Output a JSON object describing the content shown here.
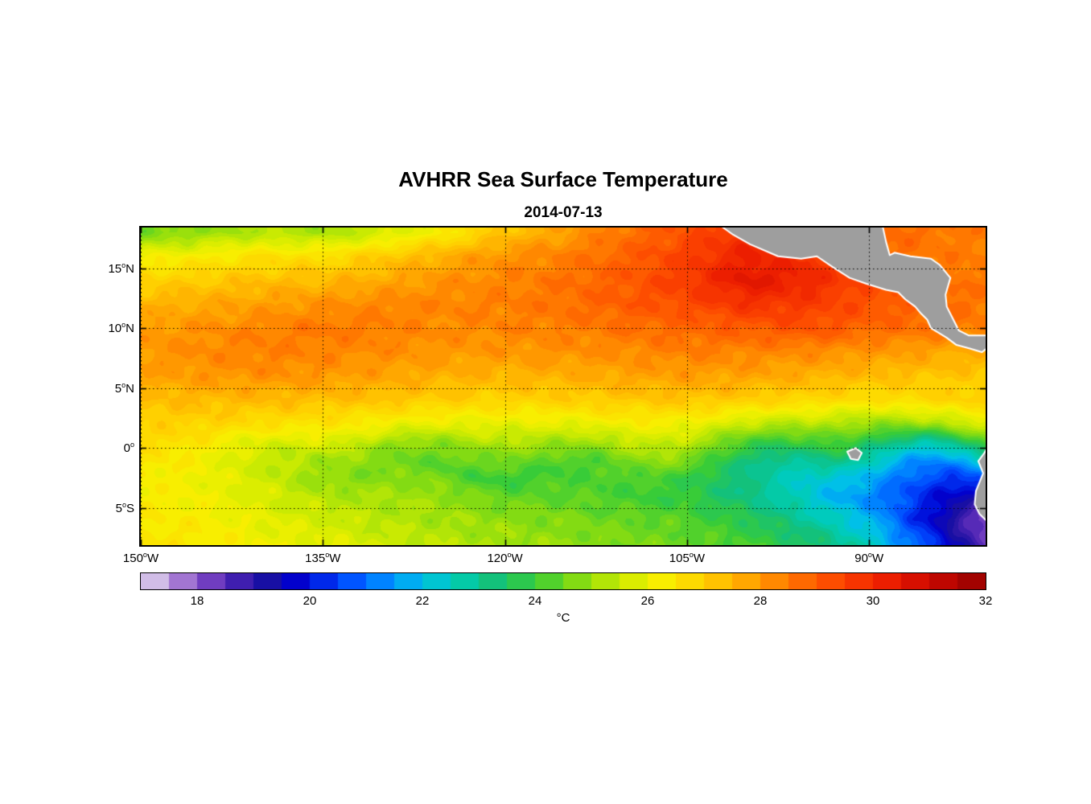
{
  "title": "AVHRR Sea Surface Temperature",
  "subtitle": "2014-07-13",
  "colors": {
    "land": "#9e9e9e",
    "coastline": "#ffffff",
    "axis": "#000000",
    "gridline": "#000000",
    "background": "#ffffff"
  },
  "chart_data": {
    "type": "heatmap",
    "title": "AVHRR Sea Surface Temperature",
    "subtitle": "2014-07-13",
    "units": "°C",
    "deg": "o",
    "lon_range": [
      -150,
      -80.4
    ],
    "lat_range": [
      -8.1,
      18.4
    ],
    "y_ticks": [
      {
        "t": "15",
        "h": "N",
        "lat": 15
      },
      {
        "t": "10",
        "h": "N",
        "lat": 10
      },
      {
        "t": "5",
        "h": "N",
        "lat": 5
      },
      {
        "t": "0",
        "h": "",
        "lat": 0
      },
      {
        "t": "5",
        "h": "S",
        "lat": -5
      }
    ],
    "x_ticks": [
      {
        "t": "150",
        "h": "W",
        "lon": -150
      },
      {
        "t": "135",
        "h": "W",
        "lon": -135
      },
      {
        "t": "120",
        "h": "W",
        "lon": -120
      },
      {
        "t": "105",
        "h": "W",
        "lon": -105
      },
      {
        "t": "90",
        "h": "W",
        "lon": -90
      }
    ],
    "gridline_lats": [
      15,
      10,
      5,
      0,
      -5
    ],
    "gridline_lons": [
      -150,
      -135,
      -120,
      -105,
      -90
    ],
    "grid": {
      "lons": [
        -150,
        -145,
        -140,
        -135,
        -130,
        -125,
        -120,
        -115,
        -110,
        -105,
        -100,
        -95,
        -90,
        -85,
        -80
      ],
      "lats": [
        -8,
        -6,
        -4,
        -2,
        0,
        2,
        4,
        6,
        8,
        10,
        12,
        14,
        16,
        18
      ],
      "sst": [
        [
          26.5,
          26.4,
          26.1,
          25.9,
          25.6,
          25.3,
          25.1,
          24.9,
          24.7,
          24.5,
          24.1,
          23.5,
          22.5,
          20.5,
          18.2
        ],
        [
          26.4,
          26.3,
          25.9,
          25.6,
          25.3,
          25.1,
          24.9,
          24.7,
          24.5,
          24.3,
          23.7,
          22.9,
          21.9,
          19.8,
          17.8
        ],
        [
          26.3,
          26.1,
          25.7,
          25.3,
          25.1,
          24.9,
          24.5,
          24.3,
          24.1,
          23.9,
          23.1,
          22.3,
          21.3,
          20.2,
          19.0
        ],
        [
          26.3,
          26.1,
          25.5,
          24.9,
          24.6,
          24.3,
          23.9,
          24.1,
          24.3,
          23.9,
          23.3,
          22.3,
          21.8,
          21.3,
          20.6
        ],
        [
          26.5,
          26.3,
          25.8,
          25.1,
          25.0,
          24.8,
          24.6,
          25.0,
          25.2,
          24.8,
          24.2,
          23.4,
          23.0,
          22.8,
          23.2
        ],
        [
          26.9,
          26.9,
          26.7,
          26.4,
          26.2,
          26.0,
          25.8,
          26.0,
          26.2,
          26.0,
          25.6,
          25.2,
          24.8,
          25.2,
          25.8
        ],
        [
          27.3,
          27.4,
          27.4,
          27.3,
          27.2,
          27.0,
          26.9,
          27.0,
          27.1,
          27.2,
          27.0,
          26.8,
          26.6,
          26.8,
          27.0
        ],
        [
          27.8,
          28.0,
          28.1,
          28.0,
          27.8,
          27.6,
          27.5,
          27.6,
          27.8,
          27.9,
          27.8,
          27.6,
          27.4,
          27.2,
          27.1
        ],
        [
          28.0,
          28.2,
          28.4,
          28.3,
          28.2,
          28.0,
          28.0,
          28.1,
          28.2,
          28.4,
          28.3,
          28.2,
          28.0,
          27.8,
          27.6
        ],
        [
          27.9,
          28.1,
          28.3,
          28.5,
          28.4,
          28.2,
          28.3,
          28.4,
          28.6,
          28.8,
          29.0,
          29.2,
          28.8,
          28.6,
          28.4
        ],
        [
          27.5,
          27.7,
          27.9,
          28.1,
          28.3,
          28.3,
          28.4,
          28.6,
          29.0,
          29.3,
          29.8,
          29.6,
          29.2,
          28.8,
          28.5
        ],
        [
          26.9,
          27.1,
          27.3,
          27.4,
          27.7,
          28.1,
          28.3,
          28.6,
          29.0,
          29.6,
          30.5,
          30.1,
          29.2,
          28.7,
          28.5
        ],
        [
          26.1,
          26.3,
          26.6,
          26.6,
          27.1,
          27.6,
          28.1,
          28.4,
          28.9,
          29.5,
          30.2,
          29.8,
          28.8,
          28.5,
          28.4
        ],
        [
          24.6,
          24.9,
          25.3,
          25.1,
          25.6,
          26.3,
          27.2,
          27.9,
          28.6,
          29.2,
          29.8,
          29.5,
          28.8,
          28.6,
          28.4
        ]
      ]
    },
    "colorbar": {
      "min": 17,
      "max": 32,
      "segment_step": 0.5,
      "ticks": [
        18,
        20,
        22,
        24,
        26,
        28,
        30,
        32
      ],
      "label": "°C",
      "stops": [
        [
          17.0,
          "#e8e0f4"
        ],
        [
          17.4,
          "#c4a8e0"
        ],
        [
          18.0,
          "#8a50c8"
        ],
        [
          18.6,
          "#4b22b4"
        ],
        [
          19.2,
          "#1a10a0"
        ],
        [
          19.8,
          "#0000d0"
        ],
        [
          20.6,
          "#0048ff"
        ],
        [
          21.4,
          "#0090ff"
        ],
        [
          22.0,
          "#00c0e8"
        ],
        [
          22.6,
          "#00cdb4"
        ],
        [
          23.2,
          "#10c080"
        ],
        [
          24.0,
          "#38cc38"
        ],
        [
          24.8,
          "#88dc10"
        ],
        [
          25.6,
          "#d2ec00"
        ],
        [
          26.2,
          "#f8f000"
        ],
        [
          27.0,
          "#ffd000"
        ],
        [
          27.8,
          "#ffa400"
        ],
        [
          28.6,
          "#ff7200"
        ],
        [
          29.4,
          "#fc4400"
        ],
        [
          30.2,
          "#ee2000"
        ],
        [
          31.0,
          "#cc0800"
        ],
        [
          32.0,
          "#940000"
        ]
      ]
    },
    "land_polygons": [
      {
        "name": "central-and-south-america",
        "pts": [
          [
            -102.3,
            18.6
          ],
          [
            -101.2,
            17.8
          ],
          [
            -99.8,
            17.0
          ],
          [
            -97.5,
            16.0
          ],
          [
            -95.6,
            15.8
          ],
          [
            -94.3,
            16.0
          ],
          [
            -93.0,
            15.1
          ],
          [
            -91.6,
            14.2
          ],
          [
            -90.2,
            13.7
          ],
          [
            -88.6,
            13.2
          ],
          [
            -87.6,
            13.0
          ],
          [
            -87.0,
            12.4
          ],
          [
            -86.2,
            11.8
          ],
          [
            -85.7,
            11.2
          ],
          [
            -85.2,
            10.7
          ],
          [
            -84.9,
            10.0
          ],
          [
            -83.6,
            9.2
          ],
          [
            -82.8,
            8.6
          ],
          [
            -81.7,
            8.3
          ],
          [
            -80.7,
            8.0
          ],
          [
            -80.2,
            8.4
          ],
          [
            -79.4,
            9.0
          ],
          [
            -78.9,
            8.4
          ],
          [
            -78.2,
            7.9
          ],
          [
            -77.8,
            7.2
          ],
          [
            -77.6,
            6.4
          ],
          [
            -77.3,
            5.6
          ],
          [
            -77.7,
            4.9
          ],
          [
            -77.3,
            4.0
          ],
          [
            -77.8,
            3.1
          ],
          [
            -78.4,
            2.5
          ],
          [
            -78.8,
            1.6
          ],
          [
            -79.6,
            1.0
          ],
          [
            -80.1,
            0.3
          ],
          [
            -80.5,
            -0.4
          ],
          [
            -81.0,
            -1.1
          ],
          [
            -80.6,
            -2.1
          ],
          [
            -81.2,
            -3.6
          ],
          [
            -81.3,
            -4.7
          ],
          [
            -80.9,
            -5.5
          ],
          [
            -80.1,
            -6.3
          ],
          [
            -79.6,
            -7.2
          ],
          [
            -79.1,
            -8.4
          ],
          [
            -74.0,
            -8.4
          ],
          [
            -74.0,
            9.0
          ],
          [
            -79.6,
            9.4
          ],
          [
            -81.8,
            9.4
          ],
          [
            -82.6,
            9.8
          ],
          [
            -83.1,
            10.8
          ],
          [
            -83.6,
            11.8
          ],
          [
            -83.7,
            12.8
          ],
          [
            -83.3,
            14.2
          ],
          [
            -84.2,
            15.3
          ],
          [
            -84.9,
            15.8
          ],
          [
            -86.6,
            16.0
          ],
          [
            -87.9,
            16.3
          ],
          [
            -88.3,
            16.1
          ],
          [
            -88.6,
            17.2
          ],
          [
            -88.9,
            18.6
          ]
        ]
      },
      {
        "name": "galapagos-islands",
        "pts": [
          [
            -91.8,
            -0.3
          ],
          [
            -91.1,
            0.0
          ],
          [
            -90.6,
            -0.4
          ],
          [
            -90.9,
            -1.0
          ],
          [
            -91.5,
            -0.9
          ]
        ]
      }
    ]
  }
}
